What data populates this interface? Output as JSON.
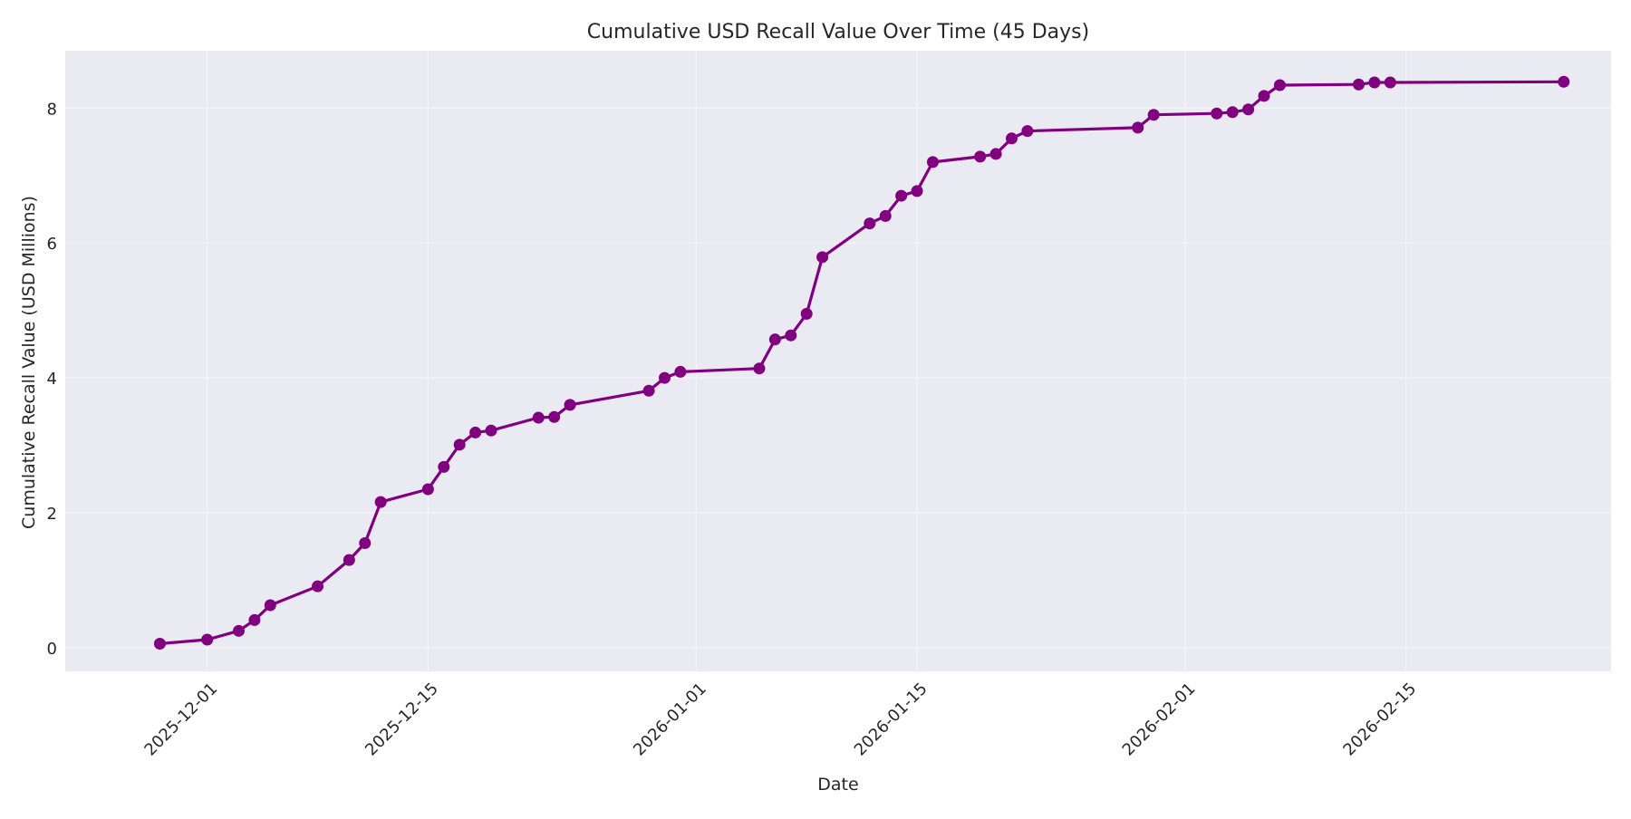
{
  "chart_data": {
    "type": "line",
    "title": "Cumulative USD Recall Value Over Time (45 Days)",
    "xlabel": "Date",
    "ylabel": "Cumulative Recall Value (USD Millions)",
    "ylim": [
      -0.35,
      8.85
    ],
    "xlim": [
      "2025-11-22",
      "2026-02-28"
    ],
    "grid": true,
    "legend": null,
    "colors": {
      "line": "#800080",
      "plot_bg": "#eaeaf2",
      "grid": "#f5f5f8"
    },
    "x_ticks": [
      "2025-12-01",
      "2025-12-15",
      "2026-01-01",
      "2026-01-15",
      "2026-02-01",
      "2026-02-15"
    ],
    "y_ticks": [
      0,
      2,
      4,
      6,
      8
    ],
    "series": [
      {
        "name": "Cumulative Recall Value",
        "points": [
          [
            "2025-11-28",
            0.06
          ],
          [
            "2025-12-01",
            0.12
          ],
          [
            "2025-12-03",
            0.25
          ],
          [
            "2025-12-04",
            0.41
          ],
          [
            "2025-12-05",
            0.63
          ],
          [
            "2025-12-08",
            0.91
          ],
          [
            "2025-12-10",
            1.3
          ],
          [
            "2025-12-11",
            1.55
          ],
          [
            "2025-12-12",
            2.16
          ],
          [
            "2025-12-15",
            2.35
          ],
          [
            "2025-12-16",
            2.68
          ],
          [
            "2025-12-17",
            3.01
          ],
          [
            "2025-12-18",
            3.19
          ],
          [
            "2025-12-19",
            3.22
          ],
          [
            "2025-12-22",
            3.41
          ],
          [
            "2025-12-23",
            3.42
          ],
          [
            "2025-12-24",
            3.6
          ],
          [
            "2025-12-29",
            3.81
          ],
          [
            "2025-12-30",
            4.0
          ],
          [
            "2025-12-31",
            4.09
          ],
          [
            "2026-01-05",
            4.14
          ],
          [
            "2026-01-06",
            4.57
          ],
          [
            "2026-01-07",
            4.63
          ],
          [
            "2026-01-08",
            4.95
          ],
          [
            "2026-01-09",
            5.79
          ],
          [
            "2026-01-12",
            6.29
          ],
          [
            "2026-01-13",
            6.4
          ],
          [
            "2026-01-14",
            6.7
          ],
          [
            "2026-01-15",
            6.77
          ],
          [
            "2026-01-16",
            7.2
          ],
          [
            "2026-01-19",
            7.28
          ],
          [
            "2026-01-20",
            7.32
          ],
          [
            "2026-01-21",
            7.55
          ],
          [
            "2026-01-22",
            7.66
          ],
          [
            "2026-01-29",
            7.71
          ],
          [
            "2026-01-30",
            7.9
          ],
          [
            "2026-02-03",
            7.92
          ],
          [
            "2026-02-04",
            7.94
          ],
          [
            "2026-02-05",
            7.98
          ],
          [
            "2026-02-06",
            8.18
          ],
          [
            "2026-02-07",
            8.34
          ],
          [
            "2026-02-12",
            8.35
          ],
          [
            "2026-02-13",
            8.38
          ],
          [
            "2026-02-14",
            8.38
          ],
          [
            "2026-02-25",
            8.39
          ]
        ]
      }
    ]
  }
}
